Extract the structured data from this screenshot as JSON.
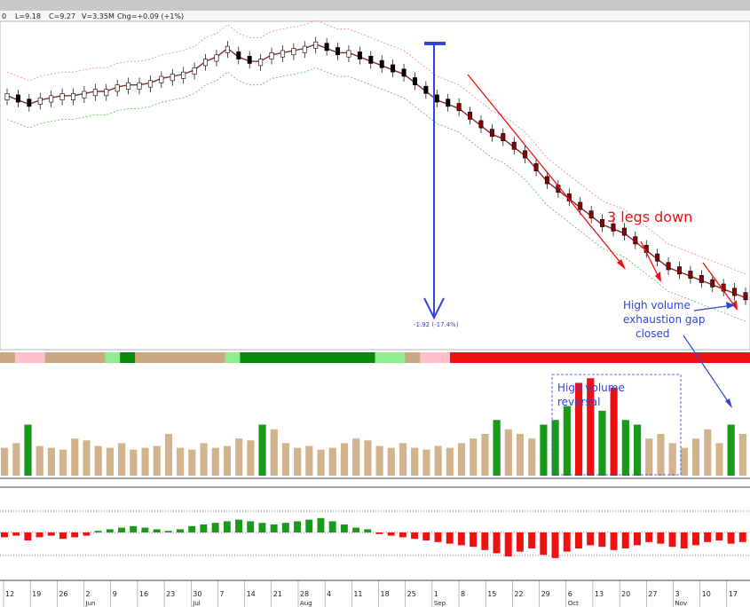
{
  "header": {
    "o_label": "0",
    "l_label": "L=9.18",
    "c_label": "C=9.27",
    "v_label": "V=3.35M",
    "chg_label": "Chg=+0.09 (+1%)"
  },
  "annotations": {
    "drop_label": "-1.92 (-17.4%)",
    "legs_label": "3 legs down",
    "gap_label_1": "High volume",
    "gap_label_2": "exhaustion gap",
    "gap_label_3": "closed",
    "reversal_label_1": "High volume",
    "reversal_label_2": "reversal"
  },
  "colors": {
    "up_candle": "#ffffff",
    "down_candle": "#000000",
    "big_down_candle": "#8b0000",
    "moving_average": "#8b2a2a",
    "upper_band": "#ff8080",
    "lower_band": "#55bb55",
    "volume_neutral": "#d2b48c",
    "volume_up": "#1a9a1a",
    "volume_down": "#ee1111",
    "annotation_red": "#ee1111",
    "annotation_blue": "#3344dd",
    "tick_sep": "#777777"
  },
  "chart_data": {
    "type": "candlestick",
    "x_ticks": [
      "12",
      "19",
      "26",
      "2",
      "9",
      "16",
      "23",
      "30",
      "7",
      "14",
      "21",
      "28",
      "4",
      "11",
      "18",
      "25",
      "1",
      "8",
      "15",
      "22",
      "29",
      "6",
      "13",
      "20",
      "27",
      "3",
      "10",
      "17"
    ],
    "month_labels": [
      "Jun",
      "Jul",
      "Aug",
      "Sep",
      "Oct",
      "Nov"
    ],
    "price_values": [
      9.6,
      9.5,
      9.4,
      9.5,
      9.55,
      9.6,
      9.6,
      9.65,
      9.7,
      9.7,
      9.8,
      9.85,
      9.85,
      9.9,
      10.0,
      10.05,
      10.1,
      10.2,
      10.4,
      10.5,
      10.7,
      10.5,
      10.4,
      10.4,
      10.55,
      10.6,
      10.65,
      10.7,
      10.8,
      10.7,
      10.6,
      10.6,
      10.5,
      10.4,
      10.3,
      10.2,
      10.1,
      9.9,
      9.7,
      9.5,
      9.4,
      9.3,
      9.1,
      8.9,
      8.7,
      8.6,
      8.4,
      8.2,
      7.9,
      7.6,
      7.4,
      7.2,
      7.0,
      6.8,
      6.6,
      6.5,
      6.4,
      6.2,
      6.0,
      5.8,
      5.6,
      5.5,
      5.4,
      5.3,
      5.2,
      5.1,
      5.0,
      4.9
    ],
    "volume_values": [
      30,
      35,
      55,
      32,
      30,
      28,
      40,
      38,
      32,
      30,
      35,
      28,
      30,
      32,
      45,
      30,
      28,
      35,
      30,
      32,
      40,
      38,
      55,
      50,
      35,
      30,
      32,
      28,
      30,
      35,
      40,
      38,
      32,
      30,
      35,
      30,
      28,
      32,
      30,
      35,
      40,
      45,
      60,
      50,
      45,
      40,
      55,
      60,
      75,
      100,
      105,
      70,
      95,
      60,
      55,
      40,
      45,
      35,
      30,
      40,
      50,
      35,
      55,
      45
    ],
    "momentum_values": [
      -0.3,
      -0.2,
      -0.5,
      -0.3,
      -0.2,
      -0.4,
      -0.3,
      -0.2,
      0.1,
      0.2,
      0.3,
      0.4,
      0.3,
      0.2,
      0.1,
      0.2,
      0.4,
      0.5,
      0.6,
      0.7,
      0.8,
      0.7,
      0.6,
      0.5,
      0.6,
      0.7,
      0.8,
      0.9,
      0.7,
      0.5,
      0.3,
      0.2,
      -0.1,
      -0.2,
      -0.3,
      -0.4,
      -0.5,
      -0.6,
      -0.7,
      -0.8,
      -0.9,
      -1.1,
      -1.3,
      -1.5,
      -1.2,
      -1.0,
      -1.4,
      -1.6,
      -1.2,
      -1.0,
      -0.8,
      -0.9,
      -1.1,
      -1.0,
      -0.8,
      -0.6,
      -0.7,
      -0.9,
      -1.0,
      -0.8,
      -0.6,
      -0.5,
      -0.7,
      -0.6
    ],
    "trend_bar": [
      "tan",
      "pink",
      "pink",
      "tan",
      "tan",
      "tan",
      "tan",
      "green-light",
      "green",
      "tan",
      "tan",
      "tan",
      "tan",
      "tan",
      "tan",
      "green-light",
      "green",
      "green",
      "green",
      "green",
      "green",
      "green",
      "green",
      "green",
      "green",
      "green-light",
      "green-light",
      "tan",
      "pink",
      "pink",
      "red",
      "red",
      "red",
      "red",
      "red",
      "red",
      "red",
      "red",
      "red",
      "red",
      "red",
      "red",
      "red",
      "red",
      "red",
      "red",
      "red",
      "red",
      "red",
      "red"
    ],
    "xlabel": "",
    "ylabel": ""
  }
}
